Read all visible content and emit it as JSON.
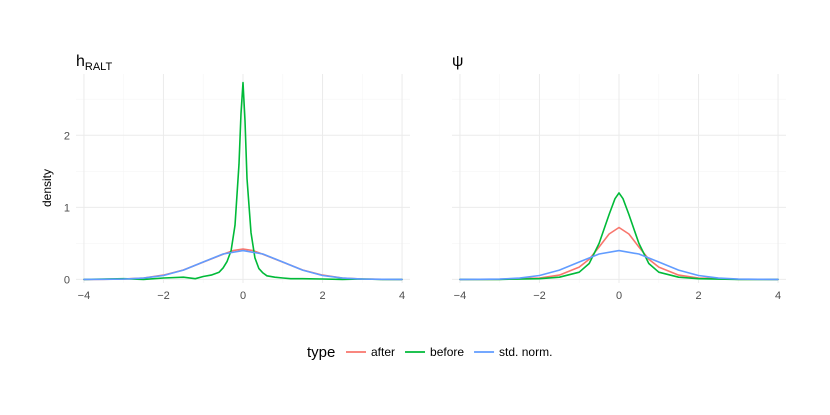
{
  "chart_data": {
    "type": "line",
    "ylabel": "density",
    "xlim": [
      -4.2,
      4.2
    ],
    "ylim": [
      -0.05,
      2.85
    ],
    "x_ticks": [
      -4,
      -2,
      0,
      2,
      4
    ],
    "x_tick_labels": [
      "−4",
      "−2",
      "0",
      "2",
      "4"
    ],
    "y_ticks": [
      0,
      1,
      2
    ],
    "y_tick_labels": [
      "0",
      "1",
      "2"
    ],
    "grid": true,
    "legend": {
      "title": "type",
      "position": "bottom",
      "entries": [
        {
          "label": "after",
          "color": "#F8766D"
        },
        {
          "label": "before",
          "color": "#00BA38"
        },
        {
          "label": "std. norm.",
          "color": "#619CFF"
        }
      ]
    },
    "panels": [
      {
        "title_main": "h",
        "title_sub": "RALT",
        "series": [
          {
            "name": "after",
            "color": "#F8766D",
            "x": [
              -4,
              -3.5,
              -3,
              -2.5,
              -2,
              -1.5,
              -1,
              -0.5,
              -0.25,
              0,
              0.25,
              0.5,
              1,
              1.5,
              2,
              2.5,
              3,
              3.5,
              4
            ],
            "y": [
              0.0,
              0.001,
              0.005,
              0.02,
              0.06,
              0.13,
              0.24,
              0.35,
              0.4,
              0.42,
              0.4,
              0.35,
              0.24,
              0.13,
              0.06,
              0.02,
              0.005,
              0.001,
              0.0
            ]
          },
          {
            "name": "before",
            "color": "#00BA38",
            "x": [
              -4,
              -3.5,
              -3,
              -2.5,
              -2,
              -1.5,
              -1.2,
              -1,
              -0.8,
              -0.6,
              -0.5,
              -0.4,
              -0.3,
              -0.2,
              -0.1,
              -0.05,
              0,
              0.05,
              0.1,
              0.2,
              0.3,
              0.4,
              0.5,
              0.6,
              0.8,
              1,
              1.2,
              1.5,
              2,
              2.5,
              3,
              3.5,
              4
            ],
            "y": [
              0.0,
              0.005,
              0.01,
              0.0,
              0.02,
              0.03,
              0.01,
              0.04,
              0.06,
              0.1,
              0.16,
              0.25,
              0.4,
              0.75,
              1.6,
              2.3,
              2.73,
              2.2,
              1.4,
              0.65,
              0.3,
              0.15,
              0.09,
              0.05,
              0.03,
              0.02,
              0.01,
              0.01,
              0.005,
              0.0,
              0.005,
              0.0,
              0.0
            ]
          },
          {
            "name": "std. norm.",
            "color": "#619CFF",
            "x": [
              -4,
              -3.5,
              -3,
              -2.5,
              -2,
              -1.5,
              -1,
              -0.5,
              0,
              0.5,
              1,
              1.5,
              2,
              2.5,
              3,
              3.5,
              4
            ],
            "y": [
              0.0001,
              0.0009,
              0.0044,
              0.0175,
              0.054,
              0.1295,
              0.242,
              0.352,
              0.399,
              0.352,
              0.242,
              0.1295,
              0.054,
              0.0175,
              0.0044,
              0.0009,
              0.0001
            ]
          }
        ]
      },
      {
        "title_main": "ψ",
        "title_sub": "",
        "series": [
          {
            "name": "after",
            "color": "#F8766D",
            "x": [
              -4,
              -3,
              -2,
              -1.5,
              -1,
              -0.75,
              -0.5,
              -0.25,
              0,
              0.25,
              0.5,
              0.75,
              1,
              1.5,
              2,
              3,
              4
            ],
            "y": [
              0.0,
              0.002,
              0.02,
              0.06,
              0.17,
              0.28,
              0.45,
              0.63,
              0.72,
              0.63,
              0.45,
              0.28,
              0.17,
              0.06,
              0.02,
              0.002,
              0.0
            ]
          },
          {
            "name": "before",
            "color": "#00BA38",
            "x": [
              -4,
              -3,
              -2,
              -1.5,
              -1,
              -0.75,
              -0.5,
              -0.25,
              -0.1,
              0,
              0.1,
              0.25,
              0.5,
              0.75,
              1,
              1.5,
              2,
              3,
              4
            ],
            "y": [
              0.0,
              0.0,
              0.01,
              0.03,
              0.1,
              0.22,
              0.5,
              0.9,
              1.12,
              1.2,
              1.12,
              0.9,
              0.5,
              0.22,
              0.1,
              0.03,
              0.01,
              0.0,
              0.0
            ]
          },
          {
            "name": "std. norm.",
            "color": "#619CFF",
            "x": [
              -4,
              -3.5,
              -3,
              -2.5,
              -2,
              -1.5,
              -1,
              -0.5,
              0,
              0.5,
              1,
              1.5,
              2,
              2.5,
              3,
              3.5,
              4
            ],
            "y": [
              0.0001,
              0.0009,
              0.0044,
              0.0175,
              0.054,
              0.1295,
              0.242,
              0.352,
              0.399,
              0.352,
              0.242,
              0.1295,
              0.054,
              0.0175,
              0.0044,
              0.0009,
              0.0001
            ]
          }
        ]
      }
    ]
  }
}
